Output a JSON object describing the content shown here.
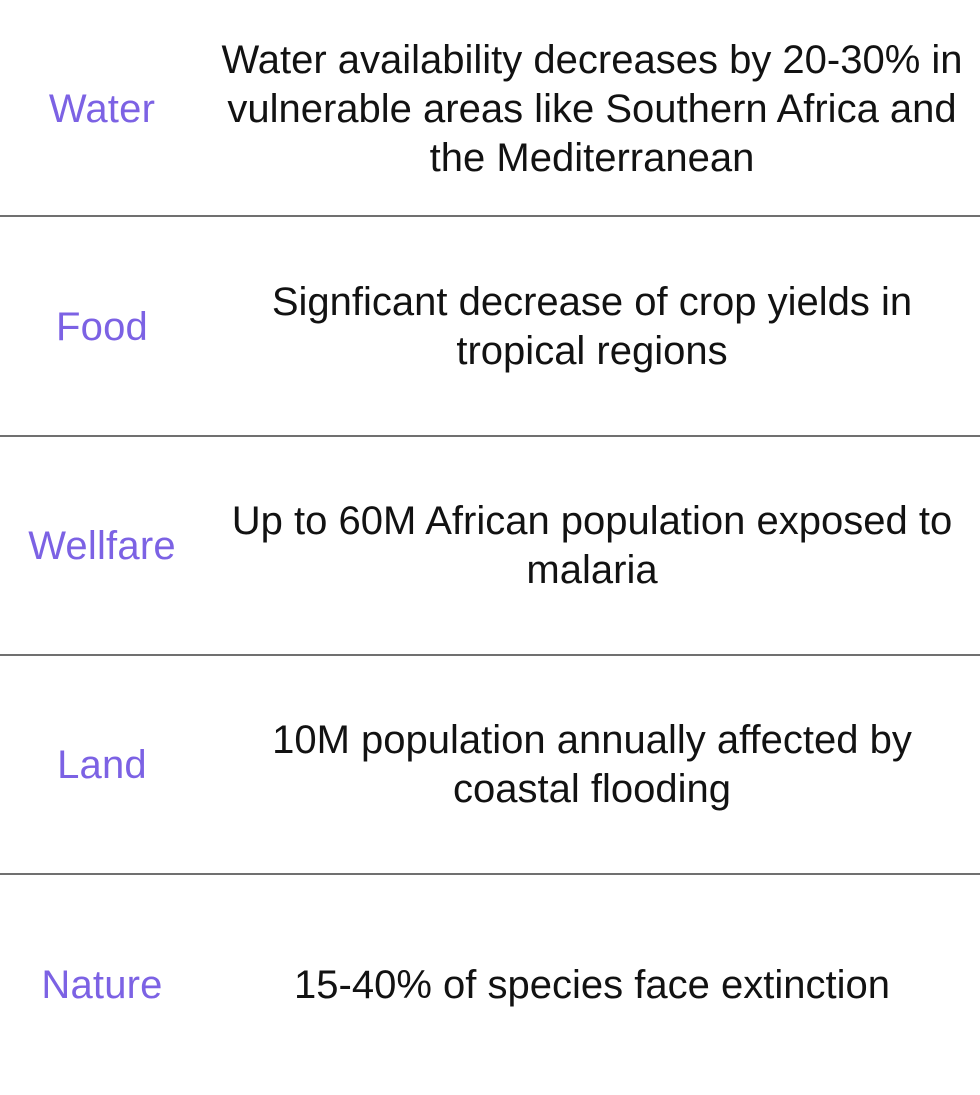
{
  "rows": [
    {
      "category": "Water",
      "impact": "Water availability decreases by 20-30% in vulnerable areas like Southern Africa and the Mediterranean"
    },
    {
      "category": "Food",
      "impact": "Signficant decrease of crop yields in tropical regions"
    },
    {
      "category": "Wellfare",
      "impact": "Up to 60M African population exposed to malaria"
    },
    {
      "category": "Land",
      "impact": "10M population annually affected by coastal flooding"
    },
    {
      "category": "Nature",
      "impact": "15-40% of species face extinction"
    }
  ],
  "colors": {
    "category_text": "#7c62e4",
    "impact_text": "#121212",
    "divider": "#707070",
    "background": "#ffffff"
  }
}
